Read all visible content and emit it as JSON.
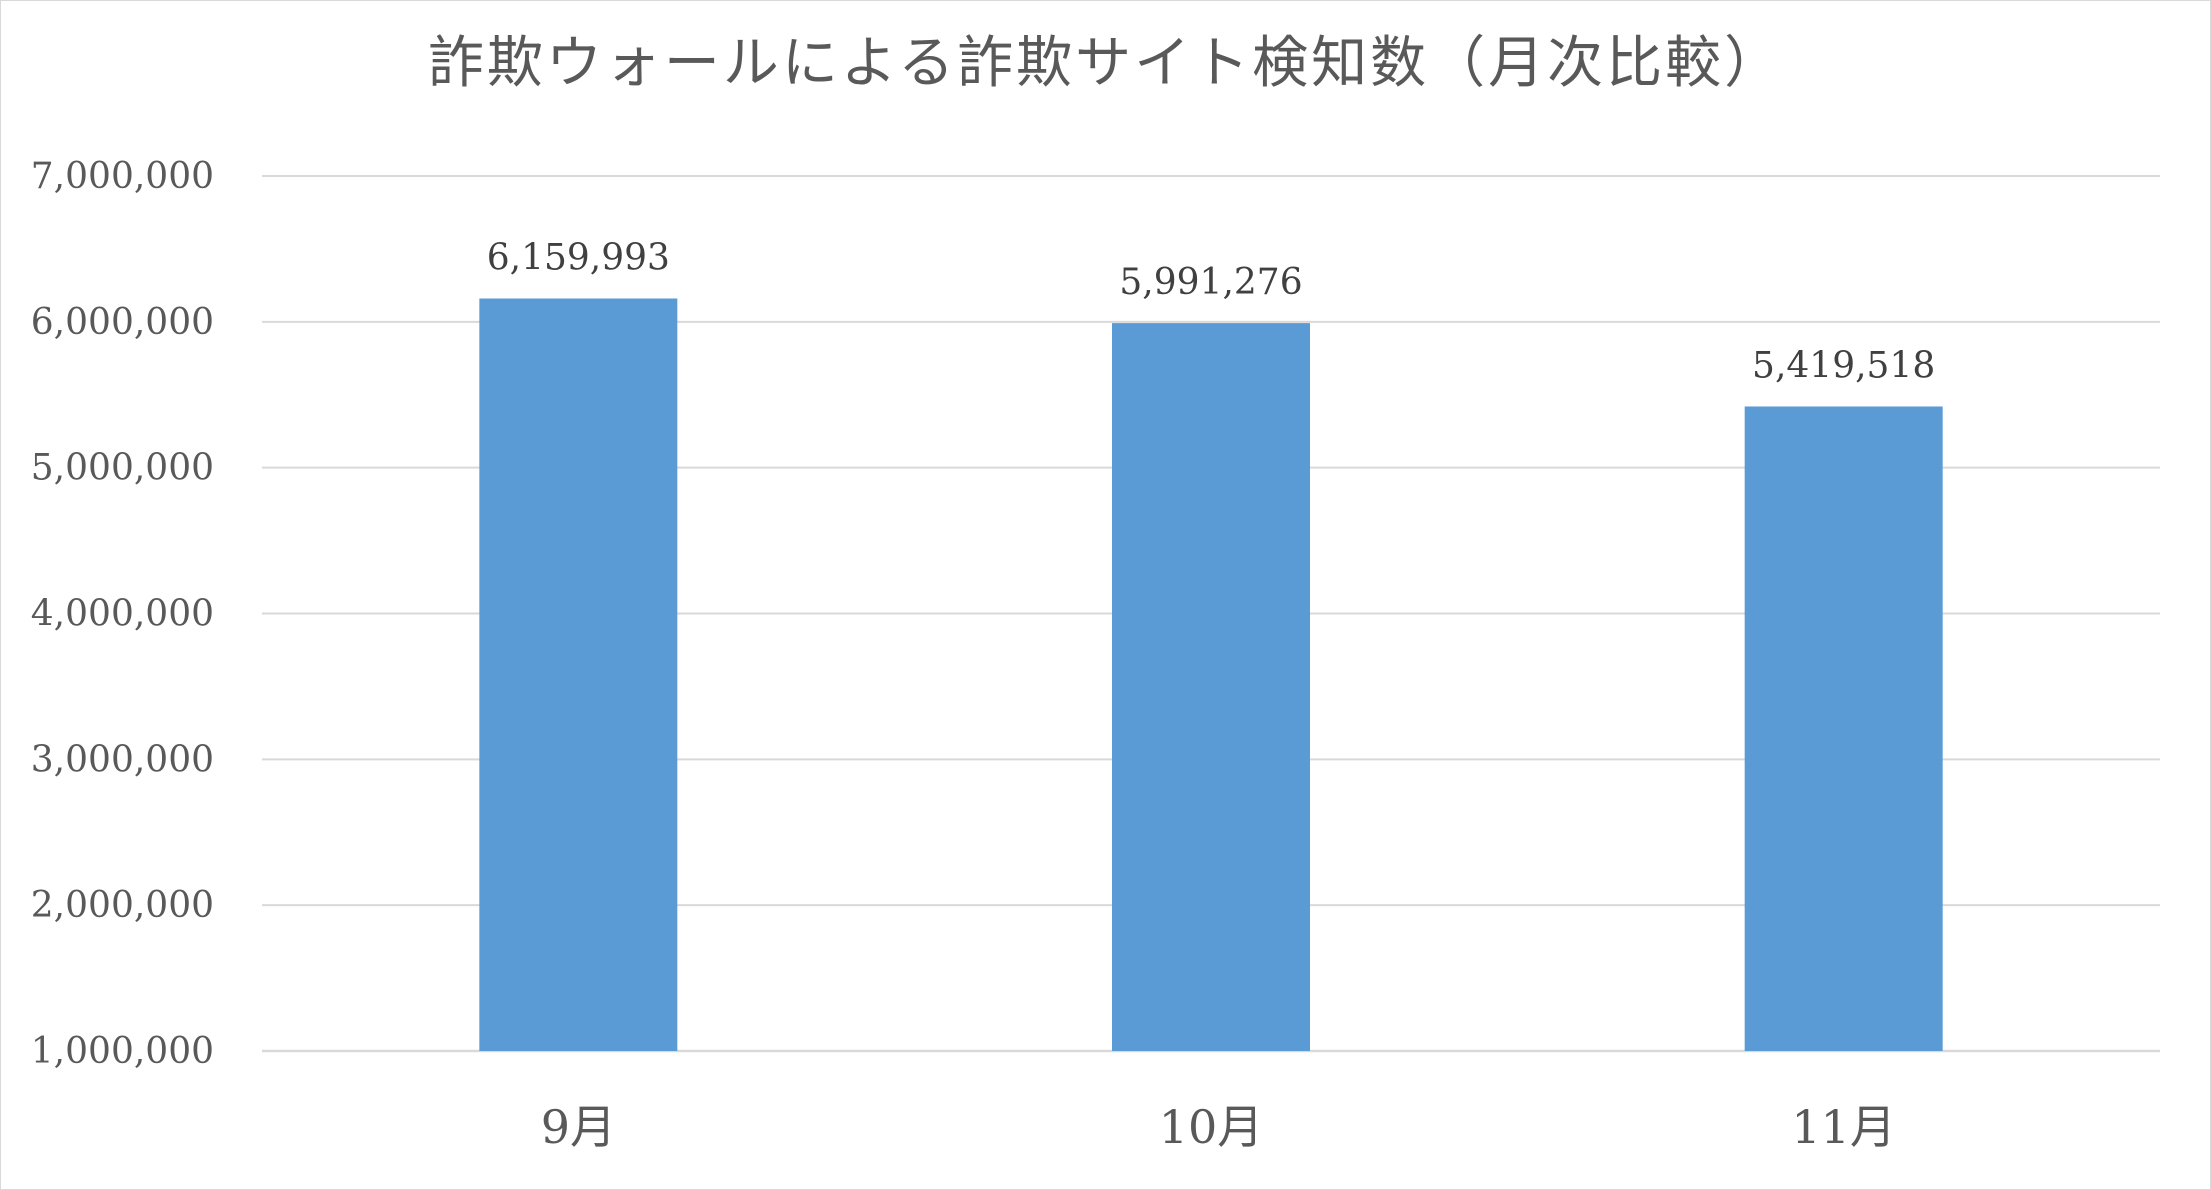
{
  "chart_data": {
    "type": "bar",
    "title": "詐欺ウォールによる詐欺サイト検知数（月次比較）",
    "categories": [
      "9月",
      "10月",
      "11月"
    ],
    "series": [
      {
        "values": [
          6159993,
          5991276,
          5419518
        ],
        "color": "#5b9bd5"
      }
    ],
    "data_labels": [
      "6,159,993",
      "5,991,276",
      "5,419,518"
    ],
    "xlabel": "",
    "ylabel": "",
    "ylim": [
      1000000,
      7000000
    ],
    "yticks": [
      1000000,
      2000000,
      3000000,
      4000000,
      5000000,
      6000000,
      7000000
    ],
    "ytick_labels": [
      "1,000,000",
      "2,000,000",
      "3,000,000",
      "4,000,000",
      "5,000,000",
      "6,000,000",
      "7,000,000"
    ],
    "grid": true,
    "legend": "none",
    "colors": {
      "bar": "#5b9bd5",
      "grid": "#d9d9d9",
      "text": "#595959",
      "border": "#d9d9d9"
    }
  }
}
